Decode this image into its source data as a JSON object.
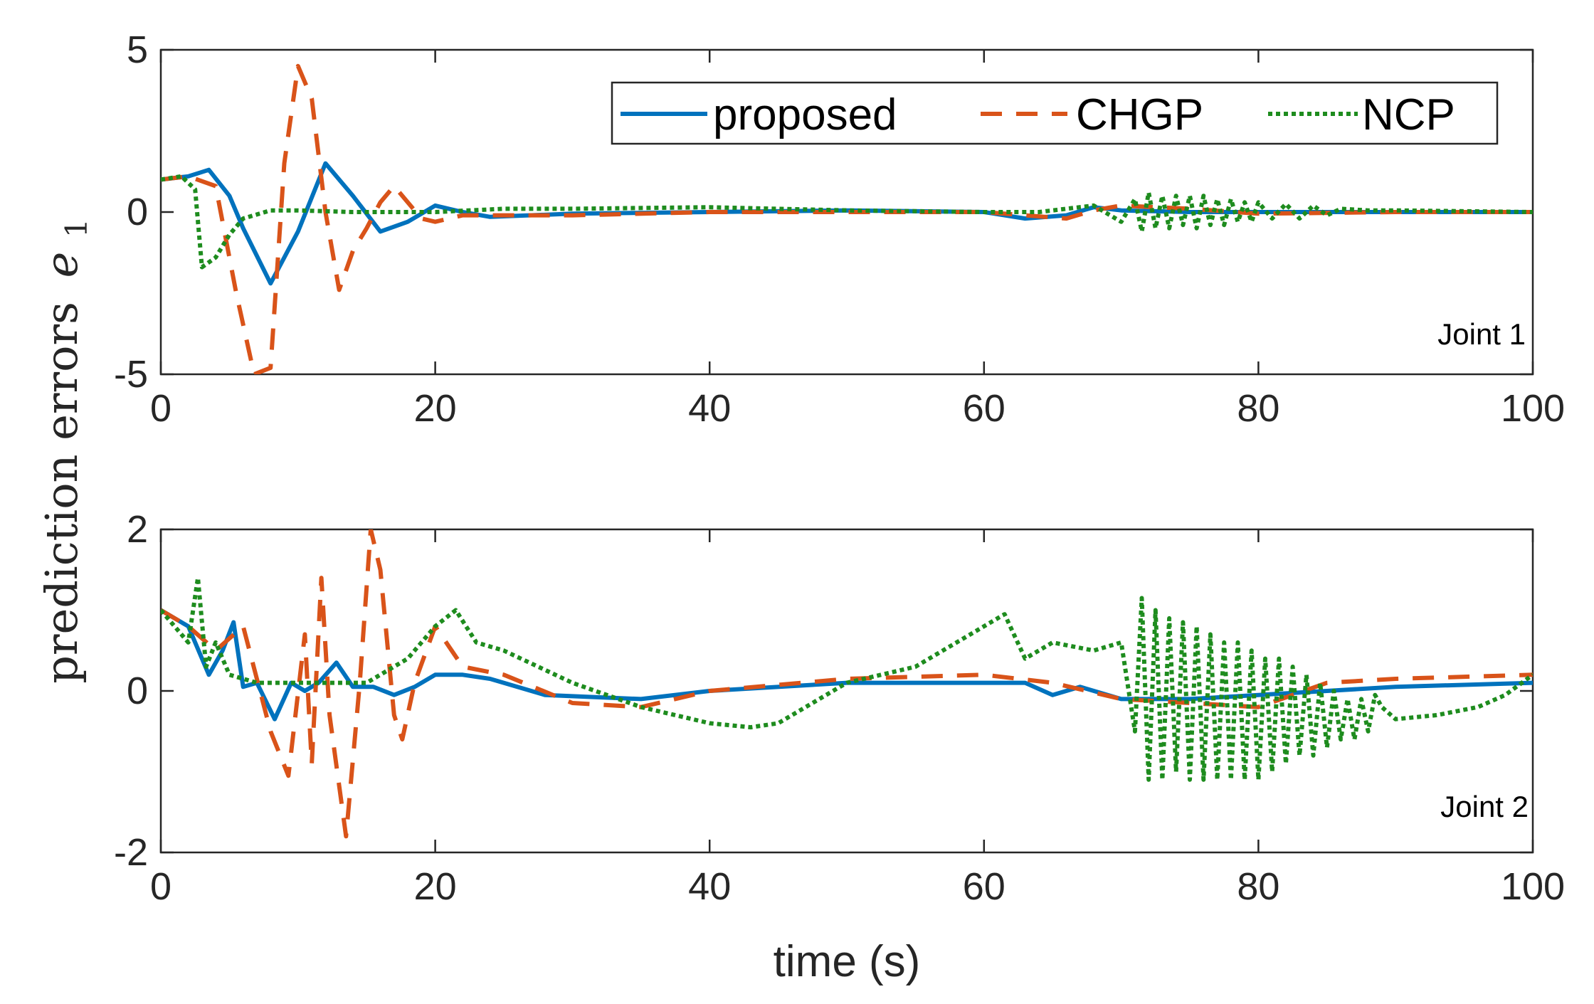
{
  "chart_data": {
    "type": "line",
    "ylabel": "prediction errors",
    "ylabel_symbol": "e",
    "ylabel_subscript": "1",
    "xlabel": "time (s)",
    "legend": {
      "placement": "top-right of upper panel",
      "entries": [
        "proposed",
        "CHGP",
        "NCP"
      ]
    },
    "colors": {
      "proposed": "#0072BD",
      "CHGP": "#D95319",
      "NCP": "#1E8C1E"
    },
    "styles": {
      "proposed": "solid",
      "CHGP": "dashed",
      "NCP": "dotted"
    },
    "panels": [
      {
        "annotation": "Joint 1",
        "xlim": [
          0,
          100
        ],
        "ylim": [
          -5,
          5
        ],
        "xticks": [
          "0",
          "20",
          "40",
          "60",
          "80",
          "100"
        ],
        "yticks": [
          "5",
          "0",
          "-5"
        ],
        "series": [
          {
            "name": "proposed",
            "x": [
              0,
              2,
              3.5,
              5,
              6,
              8,
              10,
              12,
              14,
              16,
              18,
              20,
              22,
              24,
              30,
              40,
              50,
              60,
              63,
              66,
              68,
              70,
              75,
              80,
              90,
              100
            ],
            "y": [
              1,
              1.1,
              1.3,
              0.5,
              -0.5,
              -2.2,
              -0.6,
              1.5,
              0.5,
              -0.6,
              -0.3,
              0.2,
              0,
              -0.15,
              -0.05,
              0,
              0.05,
              0,
              -0.2,
              -0.1,
              0.15,
              0.05,
              0,
              0,
              0,
              0
            ]
          },
          {
            "name": "CHGP",
            "x": [
              0,
              2,
              4,
              5.5,
              6.8,
              8,
              9,
              10,
              11,
              12,
              13,
              14,
              15,
              16,
              17,
              18,
              19,
              20,
              22,
              30,
              40,
              50,
              60,
              63,
              66,
              68,
              70,
              75,
              80,
              90,
              100
            ],
            "y": [
              1,
              1.1,
              0.8,
              -2.5,
              -5,
              -4.8,
              1.5,
              4.5,
              3.5,
              0,
              -2.4,
              -1.2,
              -0.5,
              0.3,
              0.8,
              0.3,
              -0.2,
              -0.3,
              -0.1,
              -0.1,
              0,
              0,
              0,
              -0.1,
              -0.2,
              0.05,
              0.2,
              0.1,
              -0.05,
              0,
              0
            ]
          },
          {
            "name": "NCP",
            "x": [
              0,
              1.5,
              2.5,
              3,
              4,
              5,
              6,
              8,
              10,
              14,
              18,
              20,
              25,
              30,
              40,
              50,
              60,
              64,
              66,
              68,
              70,
              71,
              71.5,
              72,
              72.5,
              73,
              73.5,
              74,
              74.5,
              75,
              75.5,
              76,
              76.5,
              77,
              77.5,
              78,
              78.5,
              79,
              79.5,
              80,
              81,
              82,
              83,
              84,
              85,
              86,
              88,
              90,
              100
            ],
            "y": [
              1,
              1.1,
              0.7,
              -1.7,
              -1.4,
              -0.7,
              -0.2,
              0.05,
              0.05,
              0,
              0,
              0,
              0.1,
              0.1,
              0.15,
              0.05,
              0,
              0,
              0.1,
              0.2,
              -0.3,
              0.4,
              -0.6,
              0.6,
              -0.5,
              0.5,
              -0.5,
              0.5,
              -0.4,
              0.5,
              -0.5,
              0.5,
              -0.4,
              0.4,
              -0.4,
              0.4,
              -0.3,
              0.3,
              -0.3,
              0.3,
              -0.2,
              0.25,
              -0.2,
              0.2,
              -0.1,
              0.1,
              0.05,
              0.05,
              0
            ]
          }
        ]
      },
      {
        "annotation": "Joint 2",
        "xlim": [
          0,
          100
        ],
        "ylim": [
          -2,
          2
        ],
        "xticks": [
          "0",
          "20",
          "40",
          "60",
          "80",
          "100"
        ],
        "yticks": [
          "2",
          "0",
          "-2"
        ],
        "series": [
          {
            "name": "proposed",
            "x": [
              0,
              2,
              3.5,
              4.5,
              5.3,
              6,
              7,
              8.3,
              9.5,
              10.5,
              11.5,
              12.8,
              14,
              15.5,
              17,
              18.5,
              20,
              22,
              24,
              28,
              35,
              40,
              50,
              60,
              63,
              65,
              67,
              70,
              75,
              80,
              85,
              90,
              100
            ],
            "y": [
              1,
              0.8,
              0.2,
              0.5,
              0.85,
              0.05,
              0.1,
              -0.35,
              0.1,
              0,
              0.1,
              0.35,
              0.05,
              0.05,
              -0.05,
              0.05,
              0.2,
              0.2,
              0.15,
              -0.05,
              -0.1,
              0,
              0.1,
              0.1,
              0.1,
              -0.05,
              0.05,
              -0.1,
              -0.1,
              -0.05,
              0,
              0.05,
              0.1
            ]
          },
          {
            "name": "CHGP",
            "x": [
              0,
              2,
              4,
              6,
              8,
              9.3,
              10.5,
              11,
              11.7,
              12.3,
              13.5,
              14.5,
              15.3,
              16,
              17,
              17.6,
              18.5,
              20,
              22,
              25,
              30,
              35,
              40,
              50,
              60,
              65,
              70,
              75,
              80,
              85,
              90,
              100
            ],
            "y": [
              1,
              0.8,
              0.5,
              0.8,
              -0.5,
              -1.05,
              0.7,
              -0.9,
              1.4,
              -0.3,
              -1.8,
              0.1,
              2.0,
              1.5,
              -0.3,
              -0.6,
              0.1,
              0.8,
              0.3,
              0.2,
              -0.15,
              -0.2,
              0,
              0.15,
              0.2,
              0.1,
              -0.1,
              -0.15,
              -0.2,
              0.1,
              0.15,
              0.2
            ]
          },
          {
            "name": "NCP",
            "x": [
              0,
              2,
              2.7,
              3.3,
              4,
              5,
              7,
              10,
              15,
              18,
              20,
              21.5,
              23,
              25,
              30,
              35,
              40,
              43,
              45,
              50,
              55,
              60,
              61.5,
              63,
              65,
              68,
              70,
              71,
              71.5,
              72,
              72.5,
              73,
              73.5,
              74,
              74.5,
              75,
              75.5,
              76,
              76.5,
              77,
              77.5,
              78,
              78.5,
              79,
              79.5,
              80,
              80.5,
              81,
              81.5,
              82,
              82.5,
              83,
              83.5,
              84,
              84.5,
              85,
              85.5,
              86,
              86.5,
              87,
              87.5,
              88,
              88.5,
              89,
              90,
              93,
              96,
              98,
              100
            ],
            "y": [
              1,
              0.6,
              1.4,
              0.3,
              0.6,
              0.2,
              0.1,
              0.1,
              0.1,
              0.4,
              0.8,
              1.0,
              0.6,
              0.5,
              0.1,
              -0.2,
              -0.4,
              -0.45,
              -0.4,
              0.1,
              0.3,
              0.8,
              0.95,
              0.4,
              0.6,
              0.5,
              0.6,
              -0.5,
              1.15,
              -1.1,
              1.0,
              -1.1,
              0.9,
              -1.0,
              0.85,
              -1.1,
              0.8,
              -1.1,
              0.7,
              -1.1,
              0.6,
              -1.1,
              0.6,
              -1.1,
              0.5,
              -1.1,
              0.4,
              -1.0,
              0.4,
              -0.9,
              0.3,
              -0.8,
              0.2,
              -0.8,
              0.1,
              -0.7,
              0,
              -0.6,
              -0.1,
              -0.6,
              -0.1,
              -0.5,
              -0.05,
              -0.2,
              -0.35,
              -0.3,
              -0.2,
              -0.05,
              0.2
            ]
          }
        ]
      }
    ]
  }
}
